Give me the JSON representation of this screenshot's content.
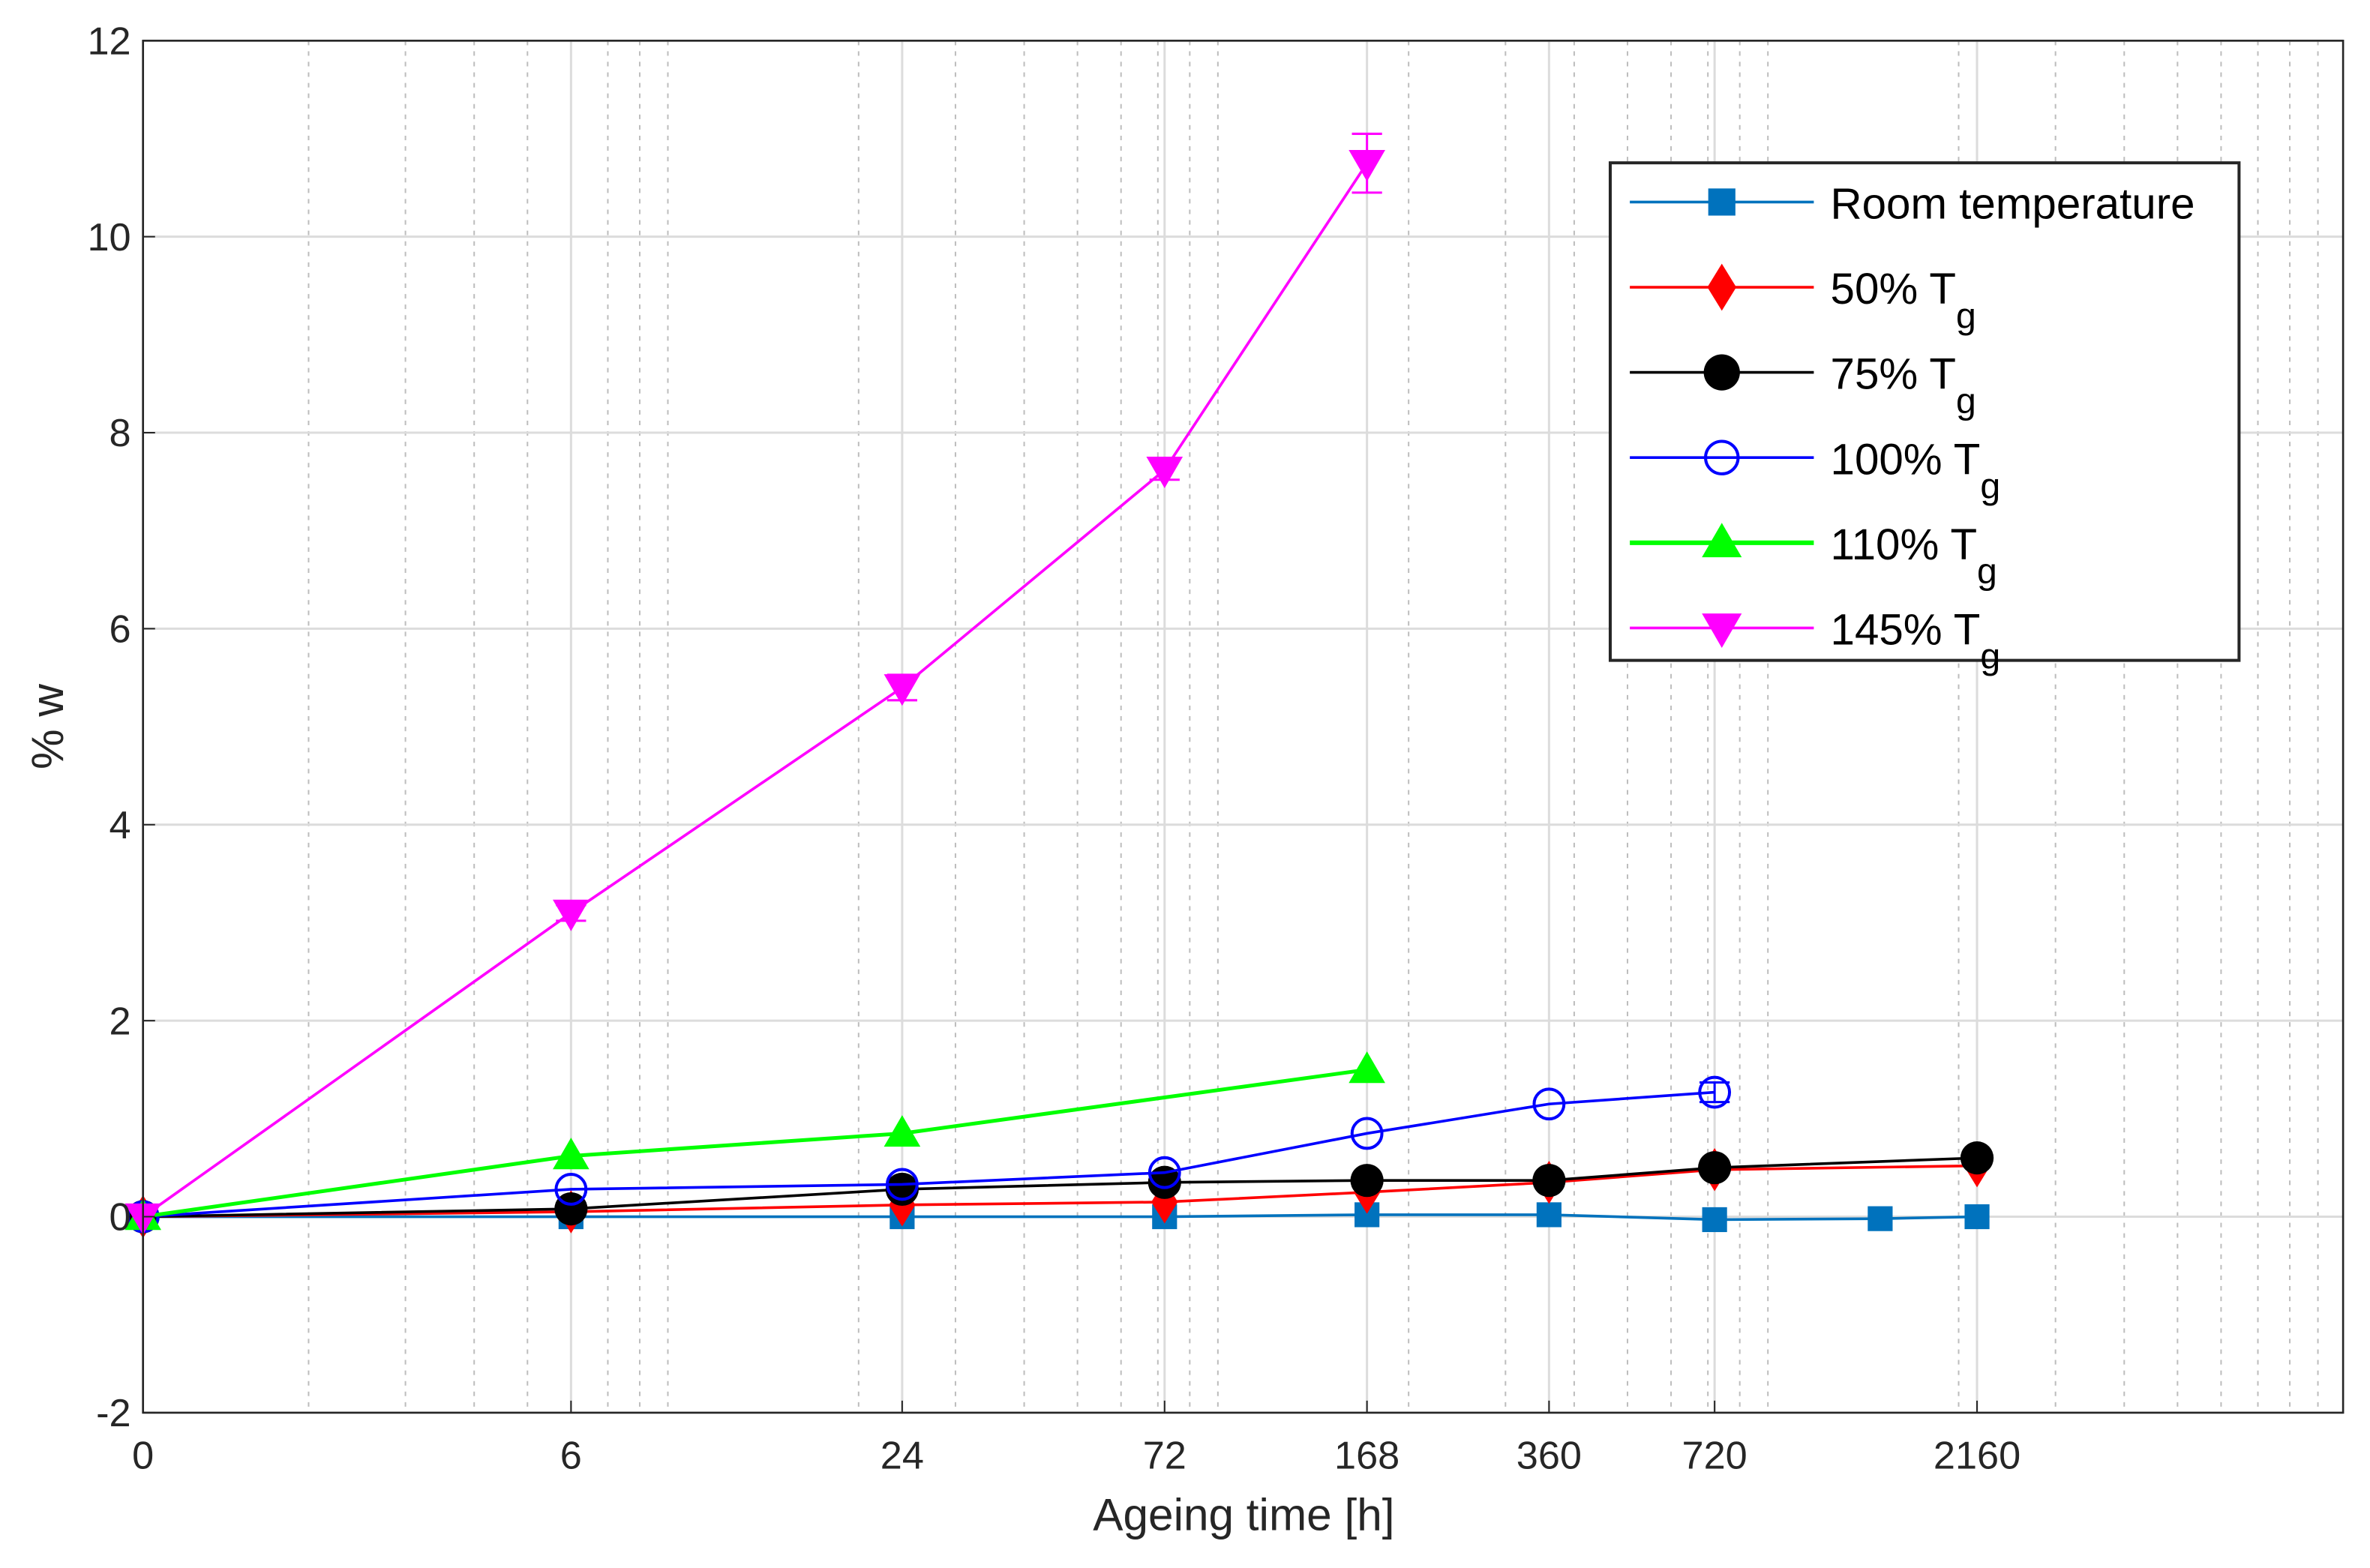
{
  "chart_data": {
    "type": "line",
    "title": "",
    "xlabel": "Ageing time [h]",
    "ylabel": "% w",
    "xscale": "log10 (0 plotted at 1 h)",
    "xlim_hours": [
      1,
      10000
    ],
    "ylim": [
      -2,
      12
    ],
    "grid": true,
    "legend_position": "top-right",
    "x_tick_labels": [
      "0",
      "6",
      "24",
      "72",
      "168",
      "360",
      "720",
      "2160"
    ],
    "x_tick_values": [
      1,
      6,
      24,
      72,
      168,
      360,
      720,
      2160
    ],
    "y_ticks": [
      -2,
      0,
      2,
      4,
      6,
      8,
      10,
      12
    ],
    "series": [
      {
        "name": "Room temperature",
        "subscript": "",
        "color": "#0072BD",
        "marker": "square",
        "x": [
          0,
          6,
          24,
          72,
          168,
          360,
          720,
          1440,
          2160
        ],
        "y": [
          0,
          0,
          0,
          0,
          0.02,
          0.02,
          -0.03,
          -0.02,
          0
        ]
      },
      {
        "name": "50% T",
        "subscript": "g",
        "color": "#FF0000",
        "marker": "diamond",
        "x": [
          0,
          6,
          24,
          72,
          168,
          360,
          720,
          2160
        ],
        "y": [
          0,
          0.05,
          0.12,
          0.15,
          0.25,
          0.35,
          0.48,
          0.52
        ]
      },
      {
        "name": "75% T",
        "subscript": "g",
        "color": "#000000",
        "marker": "circle-filled",
        "x": [
          0,
          6,
          24,
          72,
          168,
          360,
          720,
          2160
        ],
        "y": [
          0,
          0.08,
          0.28,
          0.35,
          0.37,
          0.37,
          0.5,
          0.6
        ]
      },
      {
        "name": "100% T",
        "subscript": "g",
        "color": "#0000FF",
        "marker": "circle-open",
        "x": [
          0,
          6,
          24,
          72,
          168,
          360,
          720
        ],
        "y": [
          0,
          0.28,
          0.33,
          0.45,
          0.85,
          1.15,
          1.27
        ],
        "err": [
          0,
          0,
          0,
          0,
          0,
          0,
          0.1
        ]
      },
      {
        "name": "110% T",
        "subscript": "g",
        "color": "#00FF00",
        "marker": "triangle-up",
        "x": [
          0,
          6,
          24,
          168
        ],
        "y": [
          0,
          0.62,
          0.85,
          1.5
        ]
      },
      {
        "name": "145% T",
        "subscript": "g",
        "color": "#FF00FF",
        "marker": "triangle-down",
        "x": [
          0,
          6,
          24,
          72,
          168
        ],
        "y": [
          0,
          3.1,
          5.4,
          7.62,
          10.75
        ],
        "err": [
          0,
          0.08,
          0.13,
          0.1,
          0.3
        ]
      }
    ]
  }
}
